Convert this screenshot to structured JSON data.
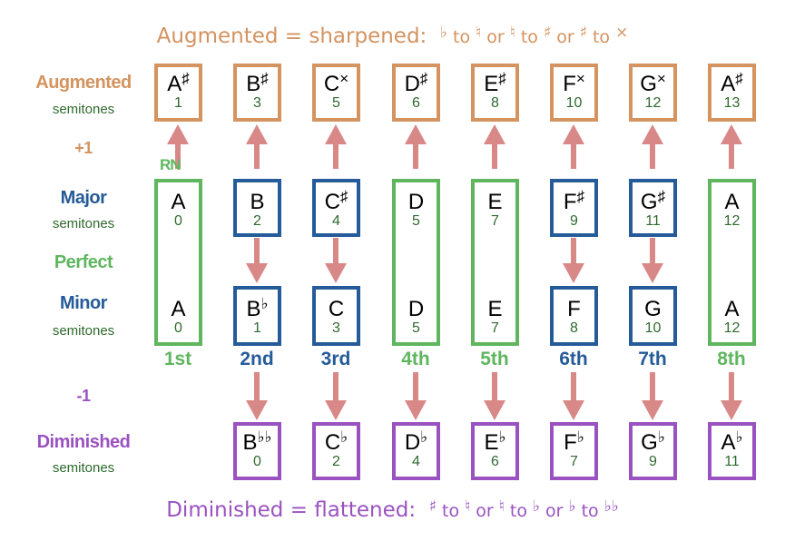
{
  "colors": {
    "augmented": "#d4935f",
    "major": "#255b99",
    "perfect": "#5fb65f",
    "minor": "#255b99",
    "diminished": "#9a52c0",
    "arrow": "#d98888",
    "semitones": "#2e6a2e"
  },
  "captions": {
    "top": {
      "text": "Augmented = sharpened:",
      "parts": [
        "♭",
        "to",
        "♮",
        "or",
        "♮",
        "to",
        "♯",
        "or",
        "♯",
        "to",
        "×"
      ]
    },
    "bottom": {
      "text": "Diminished = flattened:",
      "parts": [
        "♯",
        "to",
        "♮",
        "or",
        "♮",
        "to",
        "♭",
        "or",
        "♭",
        "to",
        "♭♭"
      ]
    }
  },
  "labels": {
    "augmented": "Augmented",
    "semitones": "semitones",
    "plus_one": "+1",
    "rn": "RN",
    "major": "Major",
    "perfect": "Perfect",
    "minor": "Minor",
    "minus_one": "-1",
    "diminished": "Diminished"
  },
  "columns": [
    {
      "degree": "1st",
      "kind": "perfect",
      "aug": {
        "n": "A",
        "a": "♯",
        "s": "1"
      },
      "maj": {
        "n": "A",
        "a": "",
        "s": "0"
      },
      "min": {
        "n": "A",
        "a": "",
        "s": "0"
      },
      "dim": null
    },
    {
      "degree": "2nd",
      "kind": "major",
      "aug": {
        "n": "B",
        "a": "♯",
        "s": "3"
      },
      "maj": {
        "n": "B",
        "a": "",
        "s": "2"
      },
      "min": {
        "n": "B",
        "a": "♭",
        "s": "1"
      },
      "dim": {
        "n": "B",
        "a": "♭♭",
        "s": "0"
      }
    },
    {
      "degree": "3rd",
      "kind": "major",
      "aug": {
        "n": "C",
        "a": "×",
        "s": "5"
      },
      "maj": {
        "n": "C",
        "a": "♯",
        "s": "4"
      },
      "min": {
        "n": "C",
        "a": "",
        "s": "3"
      },
      "dim": {
        "n": "C",
        "a": "♭",
        "s": "2"
      }
    },
    {
      "degree": "4th",
      "kind": "perfect",
      "aug": {
        "n": "D",
        "a": "♯",
        "s": "6"
      },
      "maj": {
        "n": "D",
        "a": "",
        "s": "5"
      },
      "min": {
        "n": "D",
        "a": "",
        "s": "5"
      },
      "dim": {
        "n": "D",
        "a": "♭",
        "s": "4"
      }
    },
    {
      "degree": "5th",
      "kind": "perfect",
      "aug": {
        "n": "E",
        "a": "♯",
        "s": "8"
      },
      "maj": {
        "n": "E",
        "a": "",
        "s": "7"
      },
      "min": {
        "n": "E",
        "a": "",
        "s": "7"
      },
      "dim": {
        "n": "E",
        "a": "♭",
        "s": "6"
      }
    },
    {
      "degree": "6th",
      "kind": "major",
      "aug": {
        "n": "F",
        "a": "×",
        "s": "10"
      },
      "maj": {
        "n": "F",
        "a": "♯",
        "s": "9"
      },
      "min": {
        "n": "F",
        "a": "",
        "s": "8"
      },
      "dim": {
        "n": "F",
        "a": "♭",
        "s": "7"
      }
    },
    {
      "degree": "7th",
      "kind": "major",
      "aug": {
        "n": "G",
        "a": "×",
        "s": "12"
      },
      "maj": {
        "n": "G",
        "a": "♯",
        "s": "11"
      },
      "min": {
        "n": "G",
        "a": "",
        "s": "10"
      },
      "dim": {
        "n": "G",
        "a": "♭",
        "s": "9"
      }
    },
    {
      "degree": "8th",
      "kind": "perfect",
      "aug": {
        "n": "A",
        "a": "♯",
        "s": "13"
      },
      "maj": {
        "n": "A",
        "a": "",
        "s": "12"
      },
      "min": {
        "n": "A",
        "a": "",
        "s": "12"
      },
      "dim": {
        "n": "A",
        "a": "♭",
        "s": "11"
      }
    }
  ]
}
